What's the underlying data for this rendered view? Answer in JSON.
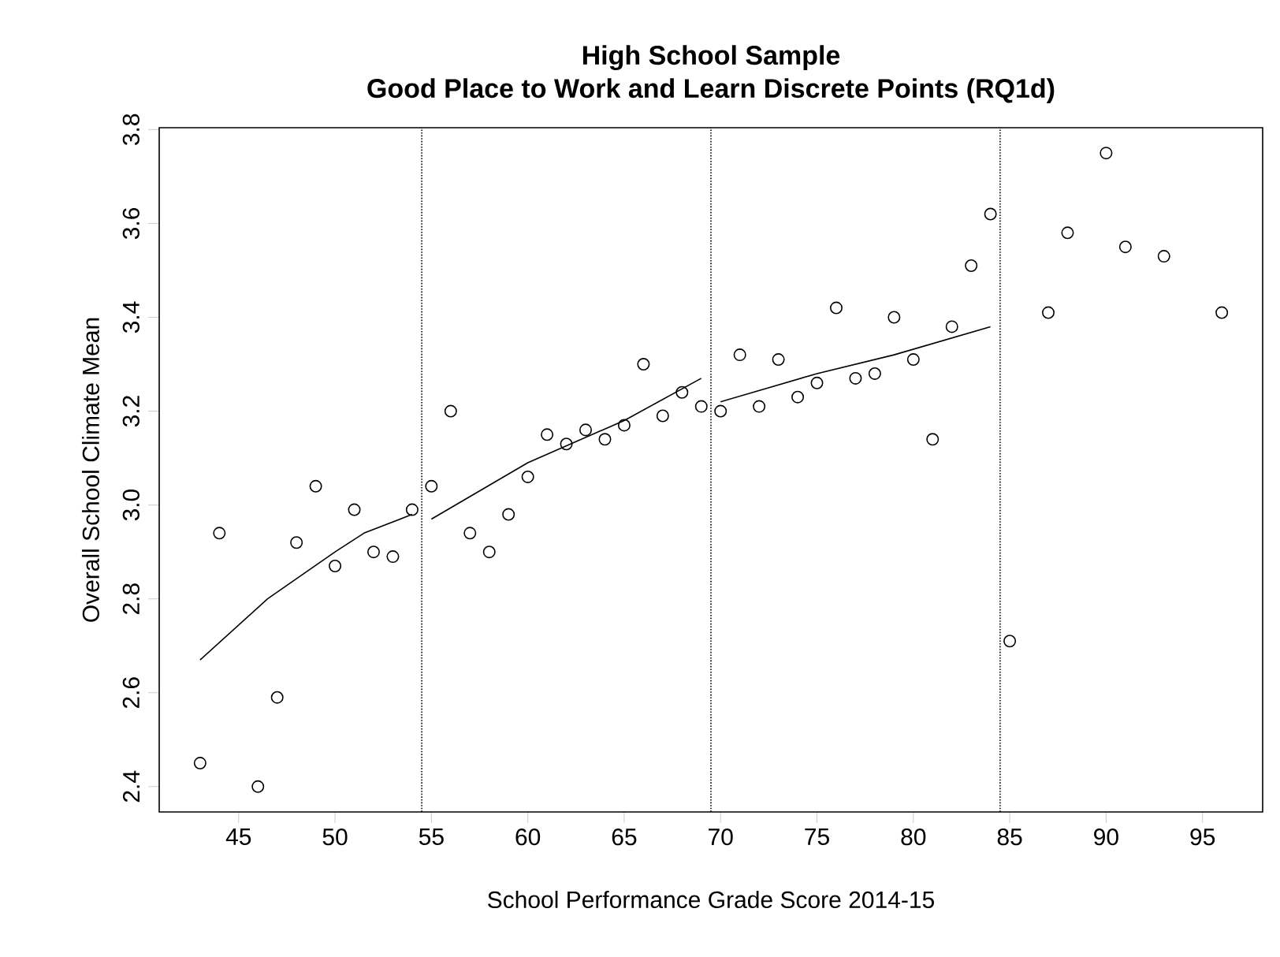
{
  "chart_data": {
    "type": "scatter",
    "title": "High School Sample",
    "subtitle": "Good Place to Work and Learn Discrete Points (RQ1d)",
    "xlabel": "School Performance Grade Score 2014-15",
    "ylabel": "Overall School Climate Mean",
    "xlim": [
      40.88,
      98.12
    ],
    "ylim": [
      2.346,
      3.804
    ],
    "xticks": [
      45,
      50,
      55,
      60,
      65,
      70,
      75,
      80,
      85,
      90,
      95
    ],
    "yticks": [
      {
        "value": 2.4,
        "label": "2.4"
      },
      {
        "value": 2.6,
        "label": "2.6"
      },
      {
        "value": 2.8,
        "label": "2.8"
      },
      {
        "value": 3.0,
        "label": "3.0"
      },
      {
        "value": 3.2,
        "label": "3.2"
      },
      {
        "value": 3.4,
        "label": "3.4"
      },
      {
        "value": 3.6,
        "label": "3.6"
      },
      {
        "value": 3.8,
        "label": "3.8"
      }
    ],
    "grid": false,
    "ref_lines": [
      {
        "axis": "x",
        "value": 54.5,
        "color": "#000000",
        "line_style": "dotted"
      },
      {
        "axis": "x",
        "value": 69.5,
        "color": "#000000",
        "line_style": "dotted"
      },
      {
        "axis": "x",
        "value": 84.5,
        "color": "#000000",
        "line_style": "dotted"
      }
    ],
    "series": [
      {
        "type": "scatter",
        "color": "#000000",
        "marker": "circle",
        "x": [
          43,
          44,
          46,
          47,
          48,
          49,
          50,
          51,
          52,
          53,
          54,
          55,
          56,
          57,
          58,
          59,
          60,
          61,
          62,
          63,
          64,
          65,
          66,
          67,
          68,
          69,
          70,
          71,
          72,
          73,
          74,
          75,
          76,
          77,
          78,
          79,
          80,
          81,
          82,
          83,
          84,
          85,
          87,
          88,
          90,
          91,
          93,
          96
        ],
        "values": [
          2.45,
          2.94,
          2.4,
          2.59,
          2.92,
          3.04,
          2.87,
          2.99,
          2.9,
          2.89,
          2.99,
          3.04,
          3.2,
          2.94,
          2.9,
          2.98,
          3.06,
          3.15,
          3.13,
          3.16,
          3.14,
          3.17,
          3.3,
          3.19,
          3.24,
          3.21,
          3.2,
          3.32,
          3.21,
          3.31,
          3.23,
          3.26,
          3.42,
          3.27,
          3.28,
          3.4,
          3.31,
          3.14,
          3.38,
          3.51,
          3.62,
          2.71,
          3.41,
          3.58,
          3.75,
          3.55,
          3.53,
          3.41
        ]
      },
      {
        "type": "line",
        "color": "#000000",
        "marker": "none",
        "line_style": "solid",
        "x": [
          43,
          46.5,
          50,
          51.5,
          54
        ],
        "values": [
          2.67,
          2.8,
          2.9,
          2.94,
          2.98
        ]
      },
      {
        "type": "line",
        "color": "#000000",
        "marker": "none",
        "line_style": "solid",
        "x": [
          55,
          60,
          65,
          69
        ],
        "values": [
          2.97,
          3.09,
          3.18,
          3.27
        ]
      },
      {
        "type": "line",
        "color": "#000000",
        "marker": "none",
        "line_style": "solid",
        "x": [
          70,
          75,
          79,
          84
        ],
        "values": [
          3.22,
          3.28,
          3.32,
          3.38
        ]
      }
    ]
  }
}
